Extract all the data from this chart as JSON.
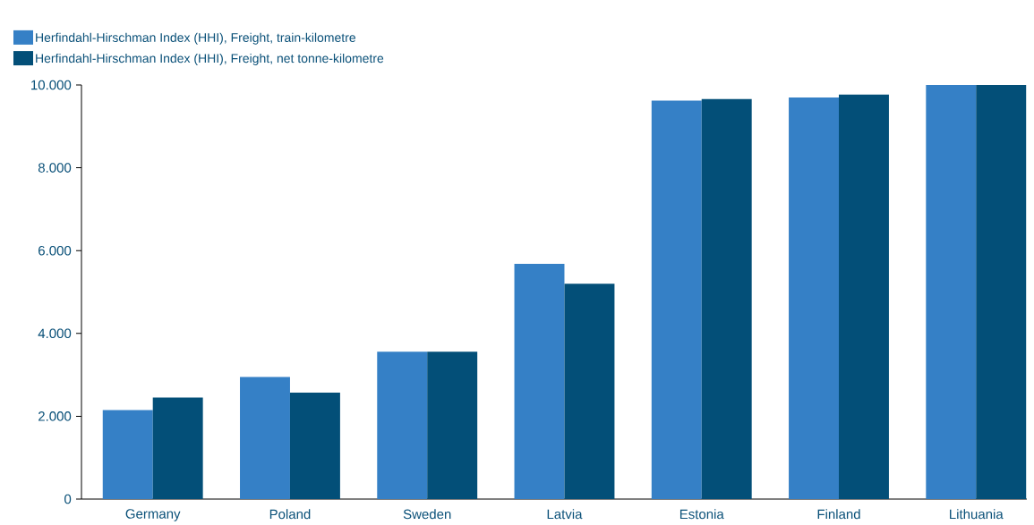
{
  "chart_data": {
    "type": "bar",
    "categories": [
      "Germany",
      "Poland",
      "Sweden",
      "Latvia",
      "Estonia",
      "Finland",
      "Lithuania"
    ],
    "series": [
      {
        "name": "Herfindahl-Hirschman Index (HHI), Freight, train-kilometre",
        "color": "#3580c6",
        "values": [
          2150,
          2950,
          3560,
          5680,
          9620,
          9700,
          10000
        ]
      },
      {
        "name": "Herfindahl-Hirschman Index (HHI), Freight, net tonne-kilometre",
        "color": "#034f78",
        "values": [
          2450,
          2570,
          3560,
          5200,
          9660,
          9770,
          10000
        ]
      }
    ],
    "ylim": [
      0,
      10000
    ],
    "yticks": [
      0,
      {
        "value": 2000,
        "label": "2.000"
      },
      {
        "value": 4000,
        "label": "4.000"
      },
      {
        "value": 6000,
        "label": "6.000"
      },
      {
        "value": 8000,
        "label": "8.000"
      },
      {
        "value": 10000,
        "label": "10.000"
      }
    ],
    "grid": false,
    "legend": "top left"
  }
}
